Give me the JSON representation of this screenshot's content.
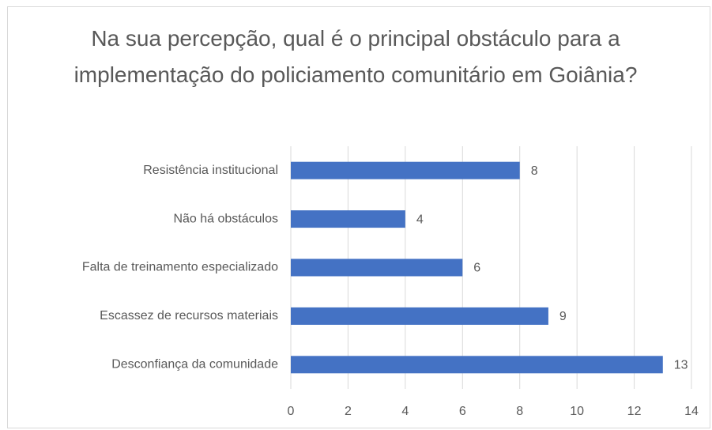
{
  "chart_data": {
    "type": "barh",
    "title": "Na sua percepção, qual é o principal obstáculo para a implementação do policiamento comunitário em Goiânia?",
    "categories": [
      "Resistência institucional",
      "Não há obstáculos",
      "Falta de treinamento especializado",
      "Escassez de recursos materiais",
      "Desconfiança da comunidade"
    ],
    "values": [
      8,
      4,
      6,
      9,
      13
    ],
    "color": "#4472c4",
    "xlim": [
      0,
      14
    ],
    "xticks": [
      0,
      2,
      4,
      6,
      8,
      10,
      12,
      14
    ],
    "grid": true
  }
}
